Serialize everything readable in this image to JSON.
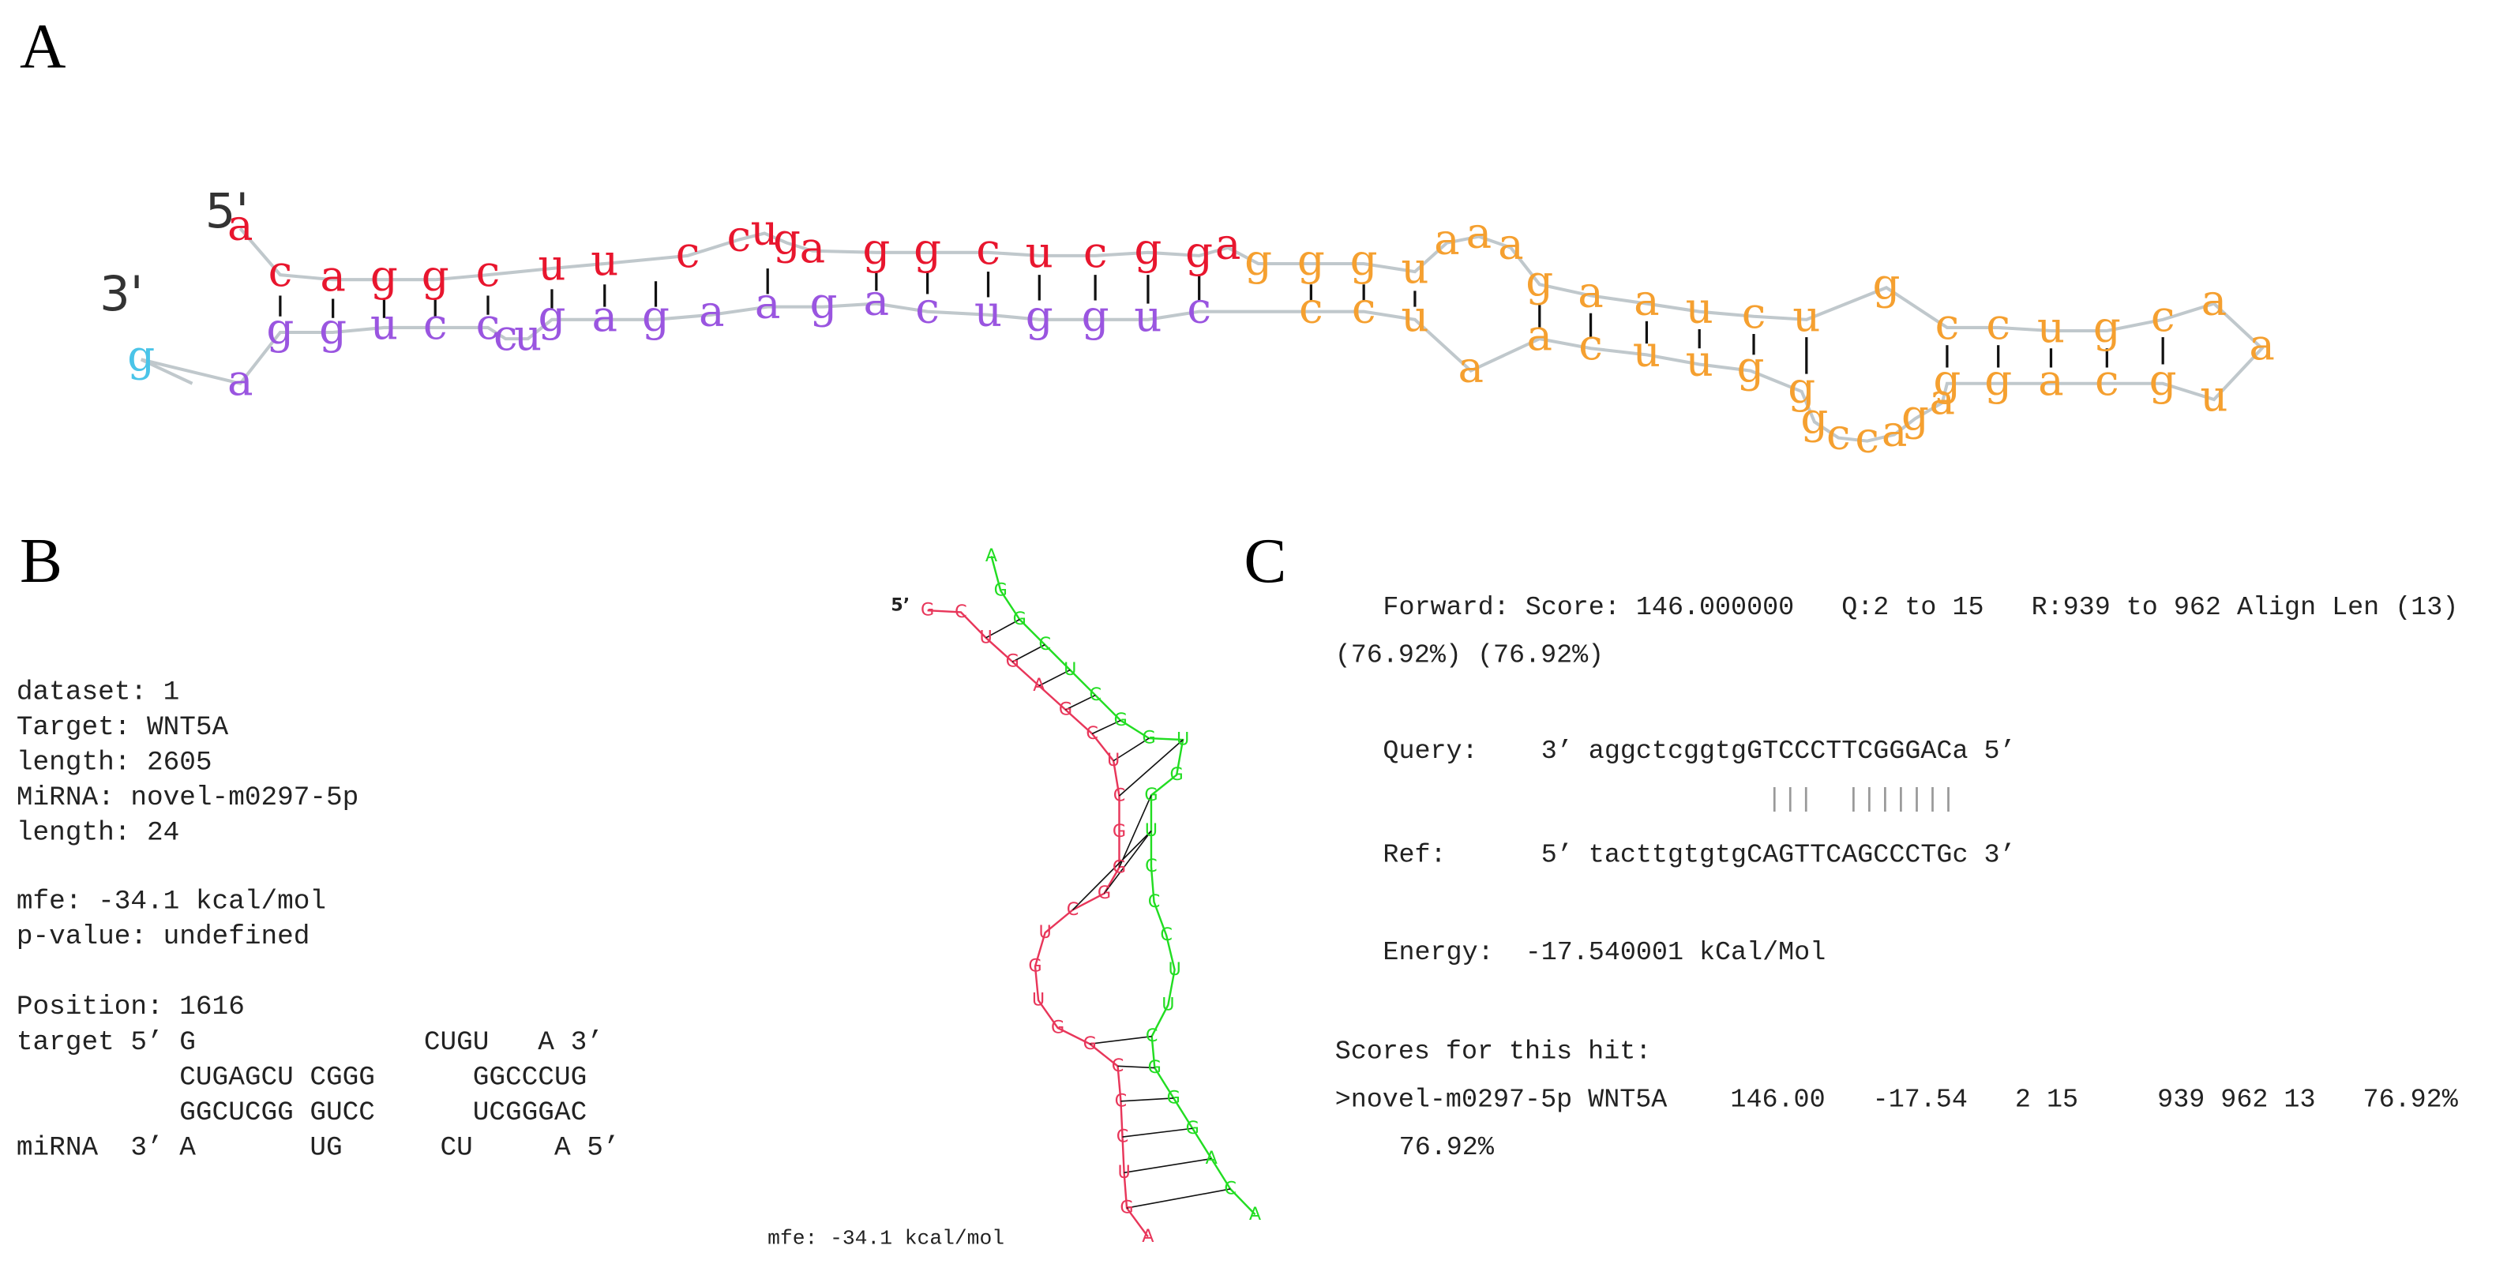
{
  "panel_labels": [
    "A",
    "B",
    "C"
  ],
  "panel_a": {
    "five_prime": "5'",
    "three_prime": "3'",
    "backbone_color": "#c0c8cc",
    "segments": [
      {
        "color": "#e8162e",
        "bases": [
          "a",
          "c",
          "a",
          "g",
          "g",
          "c",
          "u",
          "u",
          "c",
          "c",
          "u",
          "g",
          "a",
          "g",
          "g",
          "c",
          "u",
          "c",
          "g",
          "g",
          "a"
        ]
      },
      {
        "color": "#f5a030",
        "bases": [
          "g",
          "g",
          "g",
          "u",
          "a",
          "a",
          "a",
          "g",
          "a",
          "a",
          "u",
          "c",
          "u",
          "g",
          "c",
          "c",
          "u",
          "g",
          "c",
          "a",
          "a",
          "u",
          "g",
          "c",
          "a",
          "g",
          "g",
          "a",
          "g",
          "a",
          "c",
          "c",
          "g",
          "g",
          "g",
          "u",
          "u",
          "c",
          "a",
          "a",
          "u",
          "c",
          "c"
        ]
      },
      {
        "color": "#9a55e0",
        "bases": [
          "c",
          "u",
          "g",
          "g",
          "u",
          "c",
          "a",
          "g",
          "a",
          "a",
          "g",
          "a",
          "g",
          "u",
          "c",
          "c",
          "c",
          "u",
          "g",
          "g",
          "a"
        ]
      },
      {
        "color": "#4ac4e8",
        "bases": [
          "g"
        ]
      }
    ]
  },
  "panel_b": {
    "info_lines": [
      "dataset: 1",
      "Target: WNT5A",
      "length: 2605",
      "MiRNA: novel-m0297-5p",
      "length: 24",
      "mfe: -34.1 kcal/mol",
      "p-value: undefined",
      "Position: 1616"
    ],
    "alignment_lines": [
      "target 5’ G              CUGU   A 3’",
      "          CUGAGCU CGGG      GGCCCUG",
      "          GGCUCGG GUCC      UCGGGAC",
      "miRNA  3’ A       UG      CU     A 5’"
    ],
    "structure": {
      "five_prime": "5’",
      "target_color": "#e8365a",
      "mirna_color": "#22dd22",
      "target_bases": [
        "G",
        "C",
        "U",
        "G",
        "A",
        "G",
        "C",
        "U",
        "C",
        "G",
        "G",
        "G",
        "C",
        "U",
        "G",
        "U",
        "G",
        "G",
        "C",
        "C",
        "C",
        "U",
        "G",
        "A"
      ],
      "mirna_bases": [
        "A",
        "G",
        "G",
        "C",
        "U",
        "C",
        "G",
        "G",
        "U",
        "G",
        "G",
        "U",
        "C",
        "C",
        "C",
        "U",
        "U",
        "C",
        "G",
        "G",
        "G",
        "A",
        "C",
        "A"
      ],
      "mfe_label": "mfe: -34.1 kcal/mol"
    }
  },
  "panel_c": {
    "lines": [
      "Forward: Score: 146.000000   Q:2 to 15   R:939 to 962 Align Len (13)",
      "(76.92%) (76.92%)",
      "Query:    3’ aggctcggtgGTCCCTTCGGGACa 5’",
      "|||  |||||||",
      "Ref:      5’ tacttgtgtgCAGTTCAGCCCTGc 3’",
      "Energy:  -17.540001 kCal/Mol",
      "Scores for this hit:",
      ">novel-m0297-5p WNT5A    146.00   -17.54   2 15     939 962 13   76.92%",
      "76.92%"
    ]
  }
}
